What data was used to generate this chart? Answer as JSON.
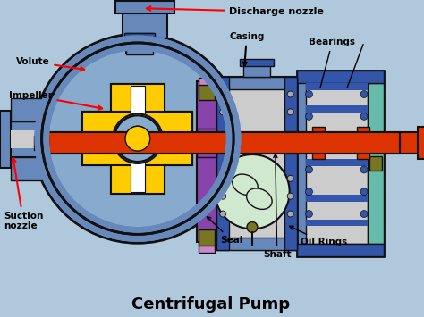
{
  "title": "Centrifugal Pump",
  "bg_color": "#b0c8dc",
  "title_fontsize": 13,
  "title_color": "black",
  "labels": {
    "discharge_nozzle": "Discharge nozzle",
    "volute": "Volute",
    "impeller": "Impeller",
    "suction_nozzle": "Suction\nnozzle",
    "casing": "Casing",
    "bearings": "Bearings",
    "seal": "Seal",
    "shaft": "Shaft",
    "oil_rings": "Oil Rings"
  },
  "colors": {
    "blue_main": "#6688bb",
    "blue_dark": "#3355aa",
    "blue_light": "#88aacc",
    "yellow": "#ffcc00",
    "yellow_dark": "#ccaa00",
    "purple": "#8844aa",
    "purple_light": "#cc88cc",
    "red_shaft": "#cc2200",
    "orange_red": "#dd3300",
    "gray_light": "#cccccc",
    "gray_med": "#aaaaaa",
    "olive": "#777722",
    "teal": "#66bbaa",
    "light_green": "#d0e8d0",
    "white": "#ffffff",
    "black": "#111111",
    "outline": "#111111",
    "pink": "#ddaacc"
  }
}
